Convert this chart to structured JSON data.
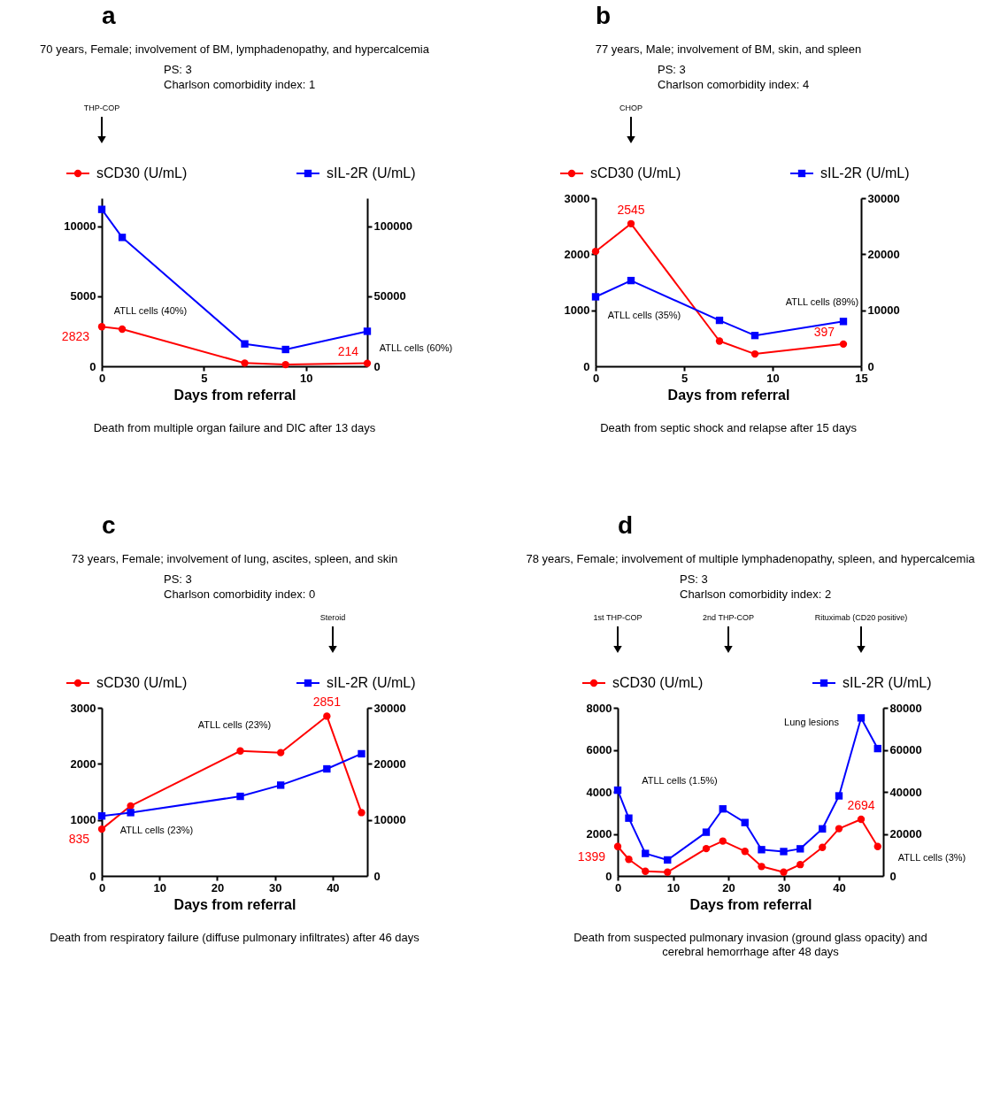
{
  "chart_data": [
    {
      "type": "line",
      "title": "a",
      "subtitle": "70 years, Female; involvement of BM, lymphadenopathy, and hypercalcemia",
      "xlabel": "Days from referral",
      "x": [
        0,
        1,
        7,
        9,
        13
      ],
      "xlim": [
        0,
        13
      ],
      "xticks": [
        0,
        5,
        10
      ],
      "ylim": [
        0,
        12000
      ],
      "yticks": [
        0,
        5000,
        10000
      ],
      "y2lim": [
        0,
        120000
      ],
      "y2ticks": [
        0,
        50000,
        100000
      ],
      "legend": "top",
      "series": [
        {
          "name": "sCD30 (U/mL)",
          "color": "#ff0000",
          "marker": "circle",
          "values": [
            2823,
            2650,
            230,
            120,
            214
          ],
          "value_labels": [
            "2823",
            null,
            null,
            null,
            "214"
          ]
        },
        {
          "name": "sIL-2R (U/mL)",
          "color": "#0000ff",
          "marker": "square",
          "axis": "y2",
          "values": [
            112000,
            92000,
            16000,
            12000,
            25000
          ]
        }
      ],
      "annotations": [
        "THP-COP",
        "ATLL cells (40%)",
        "ATLL cells (60%)",
        "PS: 3",
        "Charlson comorbidity index: 1",
        "Death from multiple organ failure and DIC after 13 days"
      ]
    },
    {
      "type": "line",
      "title": "b",
      "subtitle": "77 years, Male; involvement of BM, skin, and spleen",
      "xlabel": "Days from referral",
      "x": [
        0,
        2,
        7,
        9,
        14
      ],
      "xlim": [
        0,
        15
      ],
      "xticks": [
        0,
        5,
        10,
        15
      ],
      "ylim": [
        0,
        3000
      ],
      "yticks": [
        0,
        1000,
        2000,
        3000
      ],
      "y2lim": [
        0,
        30000
      ],
      "y2ticks": [
        0,
        10000,
        20000,
        30000
      ],
      "legend": "top",
      "series": [
        {
          "name": "sCD30 (U/mL)",
          "color": "#ff0000",
          "marker": "circle",
          "values": [
            2050,
            2545,
            450,
            220,
            397
          ],
          "value_labels": [
            null,
            "2545",
            null,
            null,
            "397"
          ]
        },
        {
          "name": "sIL-2R (U/mL)",
          "color": "#0000ff",
          "marker": "square",
          "axis": "y2",
          "values": [
            12400,
            15300,
            8200,
            5500,
            8000
          ]
        }
      ],
      "annotations": [
        "CHOP",
        "ATLL cells (35%)",
        "ATLL cells (89%)",
        "PS: 3",
        "Charlson comorbidity index: 4",
        "Death from septic shock and relapse after 15 days"
      ]
    },
    {
      "type": "line",
      "title": "c",
      "subtitle": "73 years, Female; involvement of lung, ascites, spleen, and skin",
      "xlabel": "Days from referral",
      "x": [
        0,
        5,
        24,
        31,
        39,
        45
      ],
      "xlim": [
        0,
        46
      ],
      "xticks": [
        0,
        10,
        20,
        30,
        40
      ],
      "ylim": [
        0,
        3000
      ],
      "yticks": [
        0,
        1000,
        2000,
        3000
      ],
      "y2lim": [
        0,
        30000
      ],
      "y2ticks": [
        0,
        10000,
        20000,
        30000
      ],
      "legend": "top",
      "series": [
        {
          "name": "sCD30 (U/mL)",
          "color": "#ff0000",
          "marker": "circle",
          "values": [
            835,
            1250,
            2230,
            2200,
            2851,
            1130
          ],
          "value_labels": [
            "835",
            null,
            null,
            null,
            "2851",
            null
          ]
        },
        {
          "name": "sIL-2R (U/mL)",
          "color": "#0000ff",
          "marker": "square",
          "axis": "y2",
          "values": [
            10700,
            11300,
            14200,
            16200,
            19100,
            21800
          ]
        }
      ],
      "annotations": [
        "Steroid",
        "ATLL cells (23%)",
        "ATLL cells (23%)",
        "PS: 3",
        "Charlson comorbidity index: 0",
        "Death from respiratory failure (diffuse pulmonary infiltrates) after 46 days"
      ]
    },
    {
      "type": "line",
      "title": "d",
      "subtitle": "78 years, Female; involvement of multiple lymphadenopathy, spleen, and hypercalcemia",
      "xlabel": "Days from referral",
      "x": [
        0,
        2,
        5,
        9,
        16,
        19,
        23,
        26,
        30,
        33,
        37,
        40,
        44,
        47
      ],
      "xlim": [
        0,
        48
      ],
      "xticks": [
        0,
        10,
        20,
        30,
        40
      ],
      "ylim": [
        0,
        8000
      ],
      "yticks": [
        0,
        2000,
        4000,
        6000,
        8000
      ],
      "y2lim": [
        0,
        80000
      ],
      "y2ticks": [
        0,
        20000,
        40000,
        60000,
        80000
      ],
      "legend": "top",
      "series": [
        {
          "name": "sCD30 (U/mL)",
          "color": "#ff0000",
          "marker": "circle",
          "values": [
            1399,
            790,
            220,
            180,
            1300,
            1660,
            1170,
            450,
            180,
            540,
            1360,
            2250,
            2694,
            1400
          ],
          "value_labels": [
            "1399",
            null,
            null,
            null,
            null,
            null,
            null,
            null,
            null,
            null,
            null,
            null,
            "2694",
            null
          ]
        },
        {
          "name": "sIL-2R (U/mL)",
          "color": "#0000ff",
          "marker": "square",
          "axis": "y2",
          "values": [
            40800,
            27500,
            10700,
            7600,
            20800,
            31900,
            25400,
            12500,
            11600,
            12900,
            22400,
            38100,
            75200,
            60600
          ]
        }
      ],
      "annotations": [
        "1st THP-COP",
        "2nd THP-COP",
        "Rituximab (CD20 positive)",
        "Lung lesions",
        "ATLL cells (1.5%)",
        "ATLL cells (3%)",
        "PS: 3",
        "Charlson comorbidity index: 2",
        "Death from suspected pulmonary invasion (ground glass opacity) and\ncerebral hemorrhage after 48 days"
      ]
    }
  ]
}
